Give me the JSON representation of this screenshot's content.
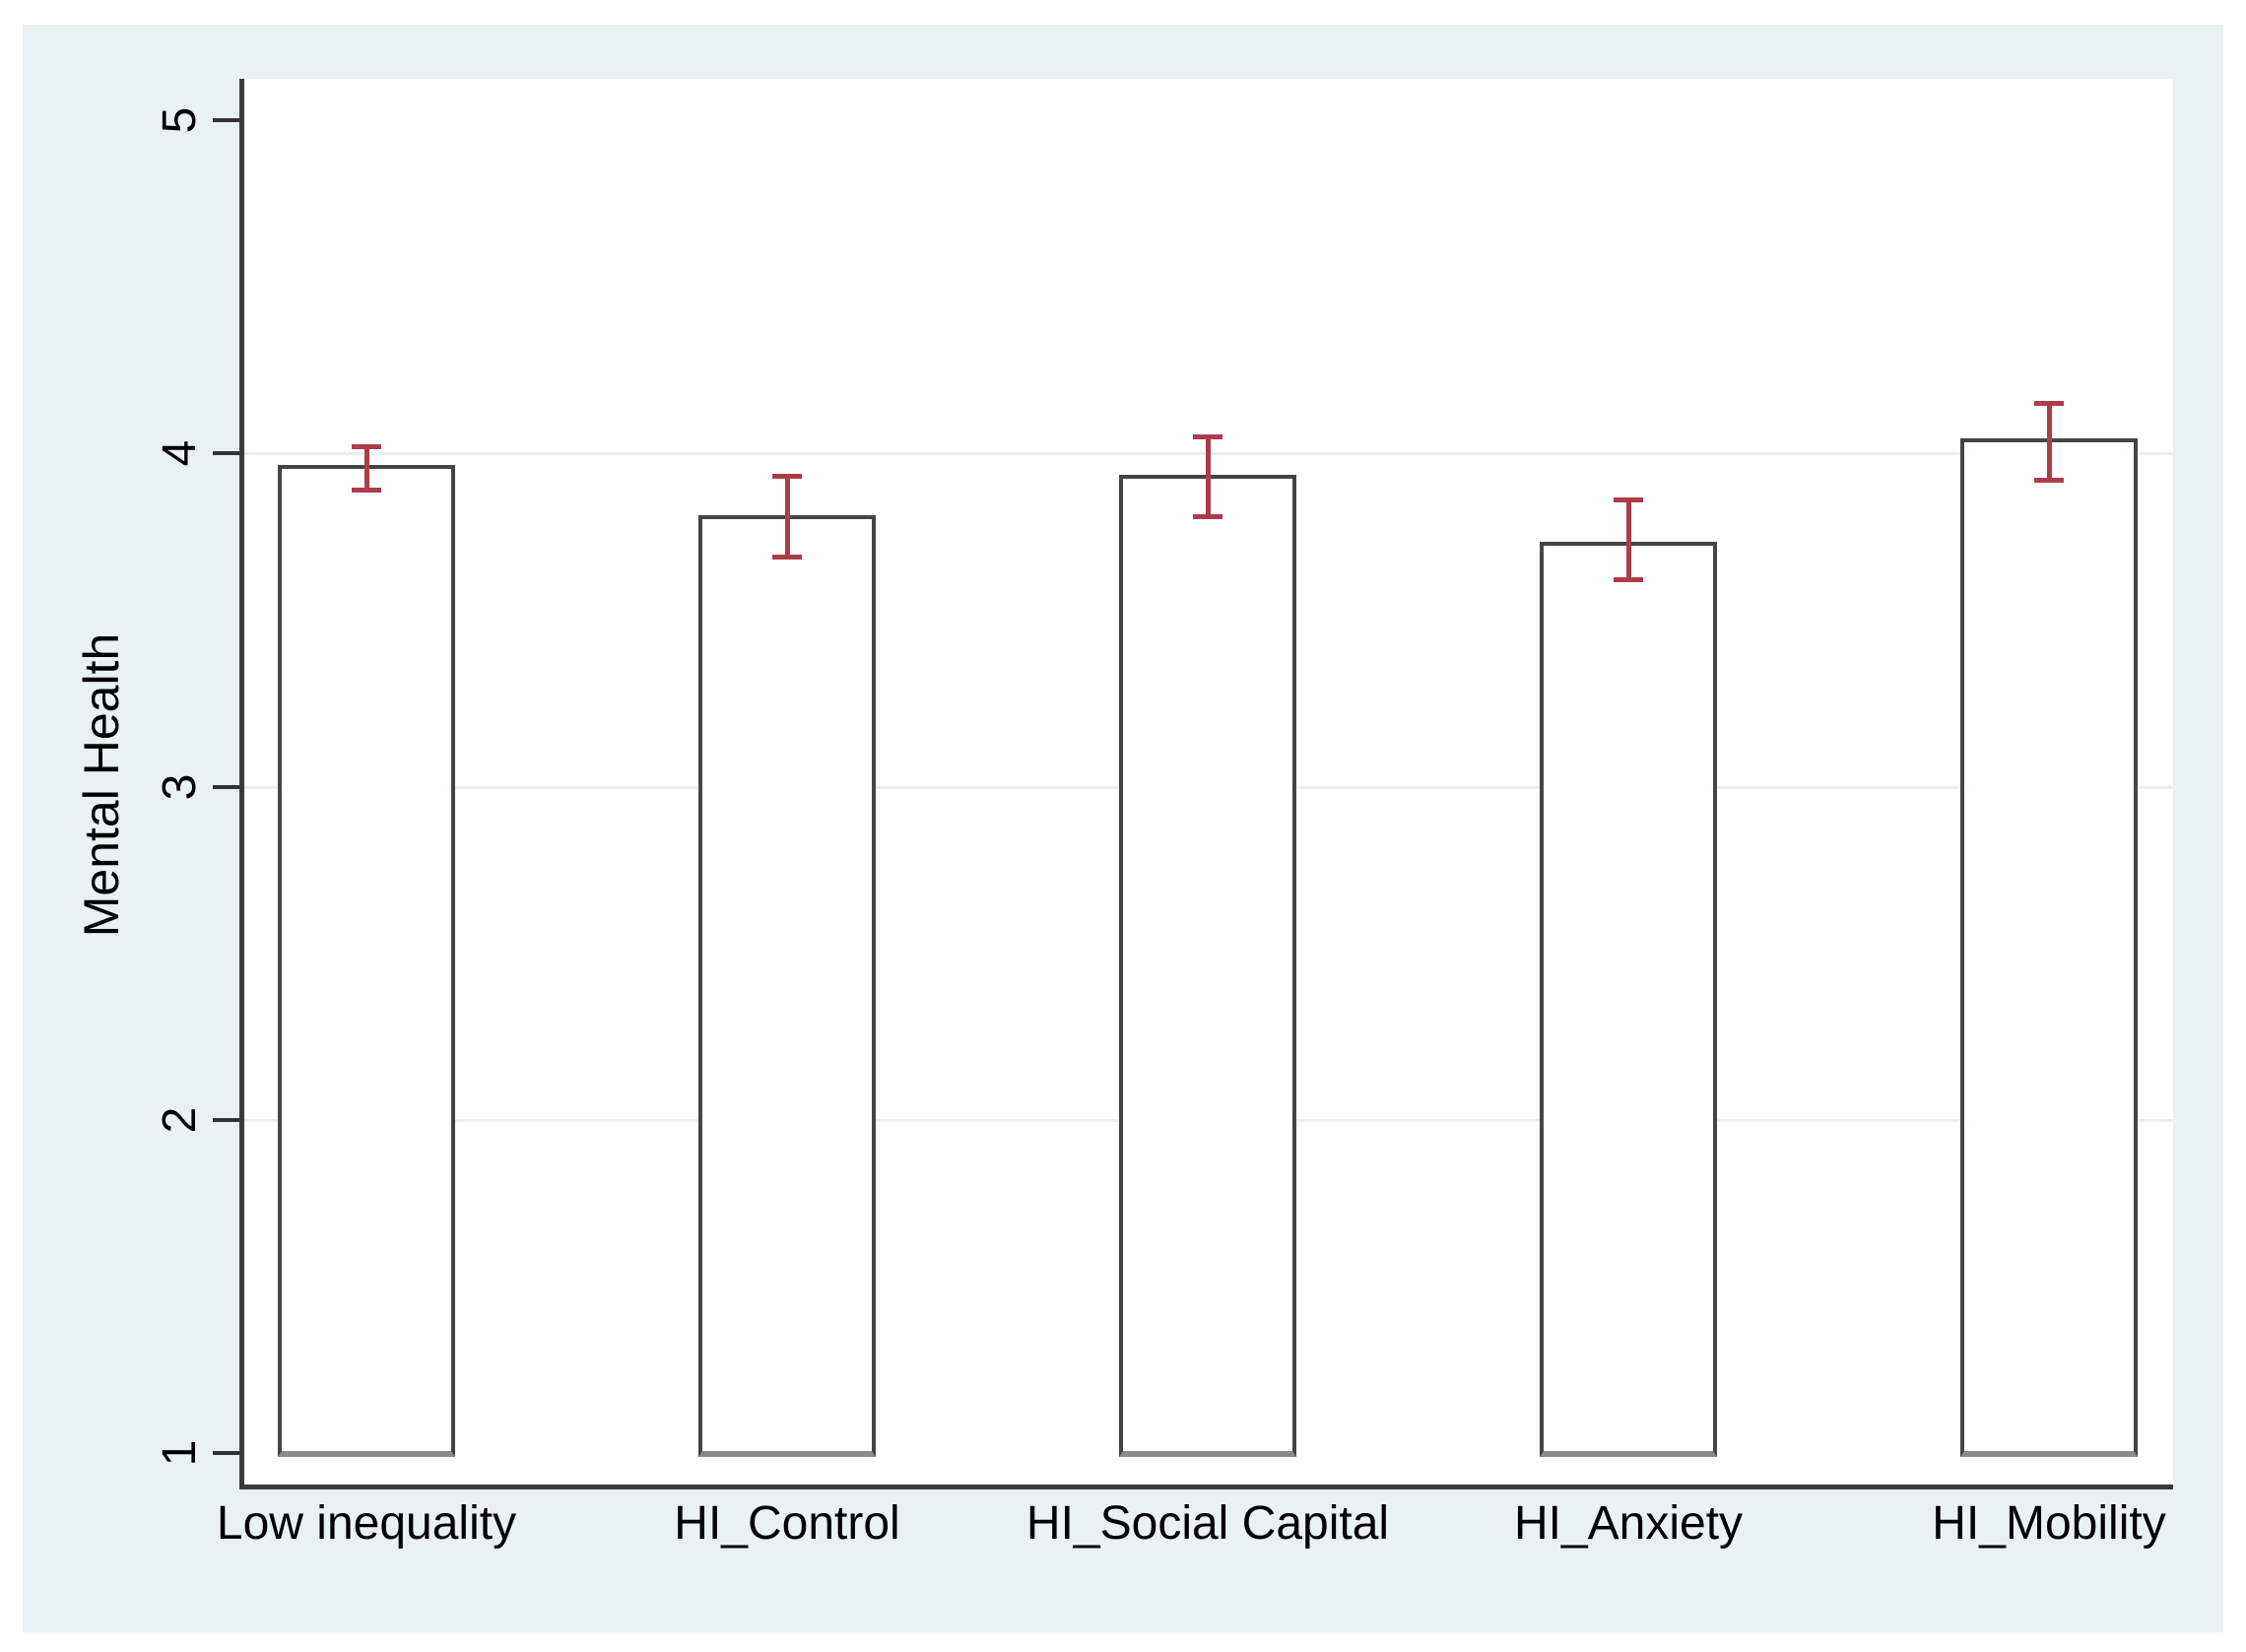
{
  "figure": {
    "canvas_background_color": "#e9f1f2",
    "plot_background_color": "#ffffff",
    "axis_line_color": "#3a3a3a",
    "tick_color": "#333333",
    "gridline_color": "#e6f0f3",
    "bar_fill_color": "#ffffff",
    "bar_border_color": "#454545",
    "bar_bottom_edge_color": "#8a8a8a",
    "error_bar_color": "#ad3c49",
    "text_color": "#000000"
  },
  "chart_data": {
    "type": "bar",
    "title": "",
    "xlabel": "",
    "ylabel": "Mental Health",
    "categories": [
      "Low inequality",
      "HI_Control",
      "HI_Social Capital",
      "HI_Anxiety",
      "HI_Mobility"
    ],
    "values": [
      3.96,
      3.81,
      3.93,
      3.73,
      4.04
    ],
    "error_bars": {
      "low": [
        3.89,
        3.69,
        3.81,
        3.62,
        3.92
      ],
      "high": [
        4.02,
        3.93,
        4.05,
        3.86,
        4.15
      ]
    },
    "ylim": [
      1,
      5
    ],
    "yticks": [
      1,
      2,
      3,
      4,
      5
    ],
    "gridline_ticks": [
      2,
      3,
      4
    ],
    "bar_baseline": 1,
    "grid": "horizontal-major",
    "legend": "none"
  }
}
